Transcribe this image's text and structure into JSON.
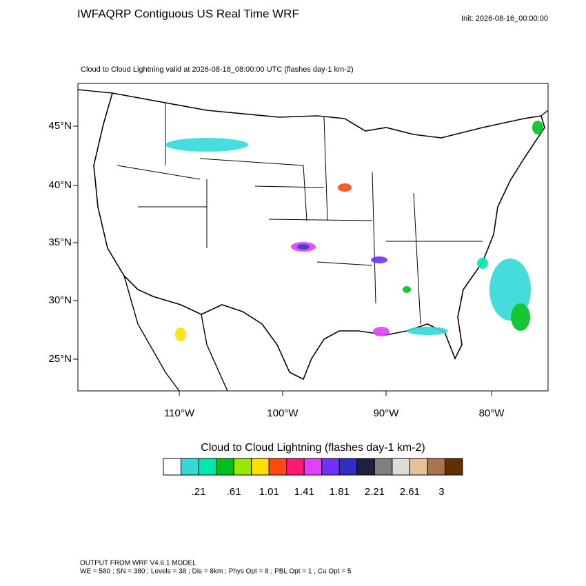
{
  "header": {
    "title": "IWFAQRP Contiguous US Real Time WRF",
    "init": "Init: 2026-08-16_00:00:00"
  },
  "map": {
    "subtitle": "Cloud to Cloud Lightning valid at 2026-08-18_08:00:00 UTC   (flashes day-1 km-2)",
    "lat_labels": [
      "45°N",
      "40°N",
      "35°N",
      "30°N",
      "25°N"
    ],
    "lon_labels": [
      "110°W",
      "100°W",
      "90°W",
      "80°W"
    ]
  },
  "colorbar": {
    "title": "Cloud to Cloud Lightning  (flashes day-1 km-2)",
    "colors": [
      "#ffffff",
      "#33d9d9",
      "#00e8b0",
      "#00c020",
      "#98e800",
      "#ffe000",
      "#ff4a10",
      "#ff1a78",
      "#e040ff",
      "#7030ff",
      "#3030c0",
      "#20203c",
      "#808080",
      "#e0dcd4",
      "#e8c098",
      "#a87450",
      "#603000"
    ],
    "labels": [
      ".21",
      ".61",
      "1.01",
      "1.41",
      "1.81",
      "2.21",
      "2.61",
      "3"
    ]
  },
  "footer": {
    "line1": "OUTPUT FROM WRF V4.6.1 MODEL",
    "line2": "WE = 580 ; SN = 380 ; Levels = 38 ; Dis = 8km ; Phys Opt = 8 ; PBL Opt = 1 ; Cu Opt = 5"
  }
}
